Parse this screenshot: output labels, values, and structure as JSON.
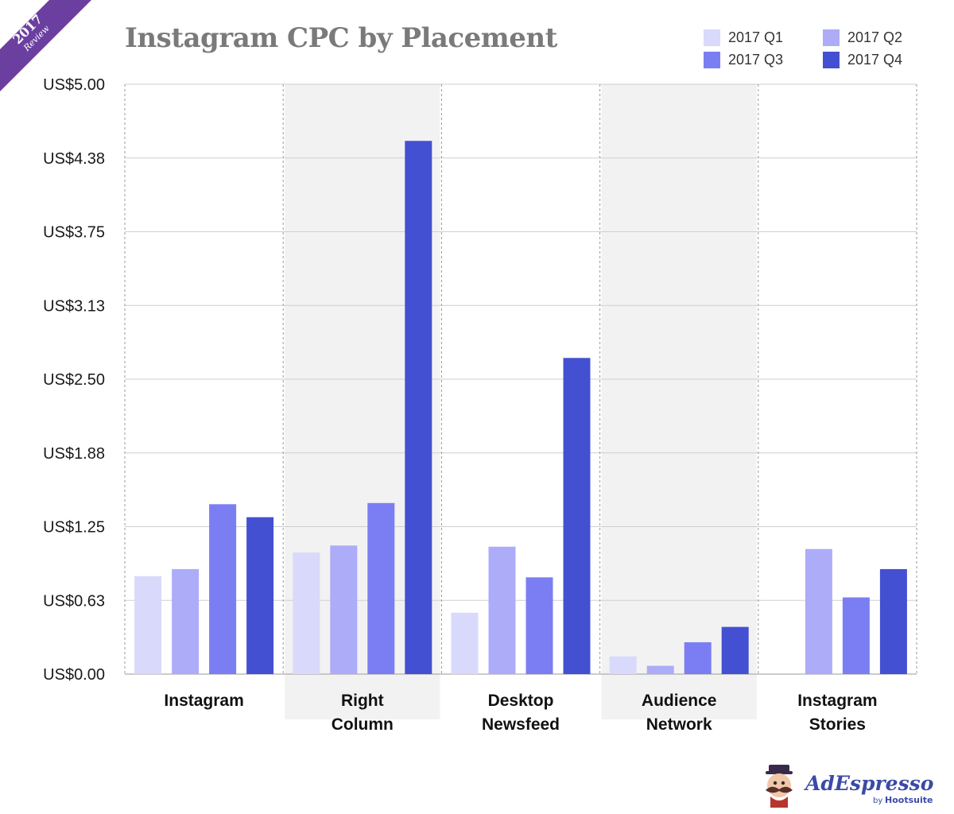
{
  "ribbon": {
    "year": "2017",
    "sub": "Review",
    "color": "#6b3fa0"
  },
  "chart_data": {
    "type": "bar",
    "title": "Instagram CPC by Placement",
    "categories": [
      [
        "Instagram"
      ],
      [
        "Right",
        "Column"
      ],
      [
        "Desktop",
        "Newsfeed"
      ],
      [
        "Audience",
        "Network"
      ],
      [
        "Instagram",
        "Stories"
      ]
    ],
    "series": [
      {
        "name": "2017 Q1",
        "color": "#d9d9fb",
        "values": [
          0.83,
          1.03,
          0.52,
          0.15,
          0.0
        ]
      },
      {
        "name": "2017 Q2",
        "color": "#acacf8",
        "values": [
          0.89,
          1.09,
          1.08,
          0.07,
          1.06
        ]
      },
      {
        "name": "2017 Q3",
        "color": "#7b7ef2",
        "values": [
          1.44,
          1.45,
          0.82,
          0.27,
          0.65
        ]
      },
      {
        "name": "2017 Q4",
        "color": "#4450d2",
        "values": [
          1.33,
          4.52,
          2.68,
          0.4,
          0.89
        ]
      }
    ],
    "yticks": [
      "US$0.00",
      "US$0.63",
      "US$1.25",
      "US$1.88",
      "US$2.50",
      "US$3.13",
      "US$3.75",
      "US$4.38",
      "US$5.00"
    ],
    "ylim": [
      0,
      5
    ],
    "grid": true,
    "legend_position": "top-right",
    "alternating_band_color": "#f2f2f2"
  },
  "brand": {
    "name": "AdEspresso",
    "by": "by",
    "parent": "Hootsuite",
    "color": "#3b4aa8"
  }
}
